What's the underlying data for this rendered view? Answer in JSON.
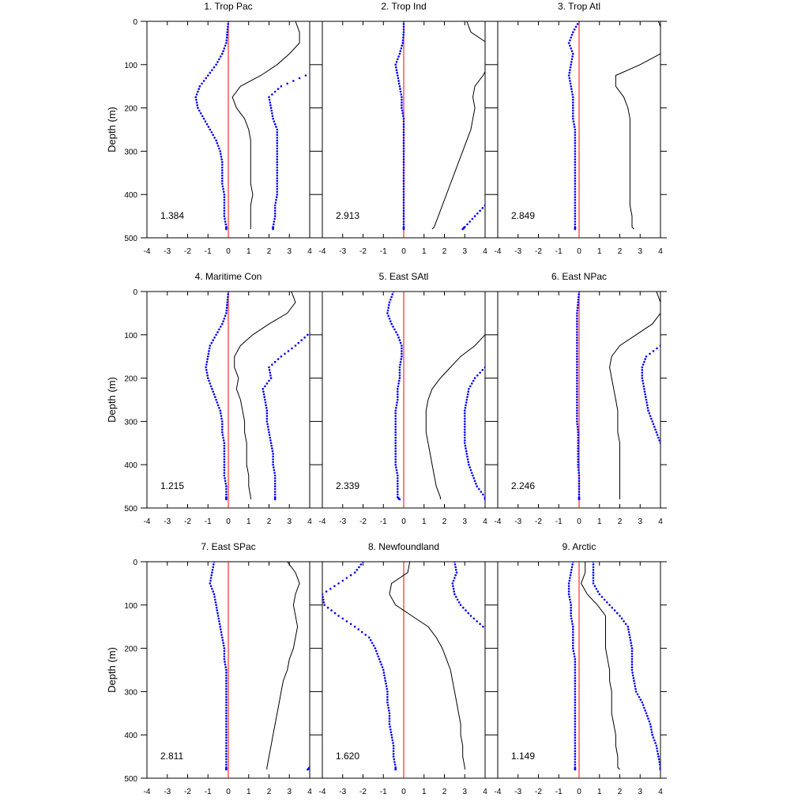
{
  "figure": {
    "ylabel": "Depth (m)",
    "series_colors": {
      "mean": "#000000",
      "band": "#0000ff",
      "zero": "#ff0000"
    }
  },
  "chart_data": [
    {
      "type": "line",
      "title": "1. Trop Pac",
      "stat": "1.384",
      "xlim": [
        -4,
        4
      ],
      "ylim": [
        0,
        500
      ],
      "xticks": [
        -4,
        -3,
        -2,
        -1,
        0,
        1,
        2,
        3,
        4
      ],
      "yticks": [
        0,
        100,
        200,
        300,
        400,
        500
      ],
      "ylabel_shown": true,
      "depth": [
        0,
        25,
        50,
        75,
        100,
        125,
        150,
        175,
        200,
        225,
        250,
        275,
        300,
        325,
        350,
        375,
        400,
        425,
        450,
        475,
        480
      ],
      "mean": [
        3.3,
        3.5,
        3.5,
        3.0,
        2.4,
        1.6,
        0.6,
        0.2,
        0.4,
        0.8,
        1.0,
        1.1,
        1.1,
        1.1,
        1.1,
        1.1,
        1.2,
        1.1,
        1.1,
        1.1,
        1.1
      ],
      "lower": [
        0.0,
        -0.05,
        -0.1,
        -0.3,
        -0.6,
        -1.0,
        -1.4,
        -1.6,
        -1.5,
        -1.2,
        -0.9,
        -0.6,
        -0.4,
        -0.3,
        -0.3,
        -0.3,
        -0.2,
        -0.2,
        -0.2,
        -0.1,
        -0.1
      ],
      "upper": [
        null,
        null,
        null,
        null,
        null,
        3.8,
        2.6,
        2.0,
        2.1,
        2.2,
        2.4,
        2.4,
        2.4,
        2.4,
        2.4,
        2.4,
        2.4,
        2.3,
        2.3,
        2.2,
        2.2
      ]
    },
    {
      "type": "line",
      "title": "2. Trop Ind",
      "stat": "2.913",
      "xlim": [
        -4,
        4
      ],
      "ylim": [
        0,
        500
      ],
      "xticks": [
        -4,
        -3,
        -2,
        -1,
        0,
        1,
        2,
        3,
        4
      ],
      "yticks": [
        0,
        100,
        200,
        300,
        400,
        500
      ],
      "ylabel_shown": false,
      "depth": [
        0,
        25,
        50,
        75,
        100,
        125,
        150,
        175,
        200,
        225,
        250,
        275,
        300,
        325,
        350,
        375,
        400,
        425,
        450,
        475,
        480
      ],
      "mean": [
        3.1,
        3.3,
        4.1,
        4.2,
        4.2,
        3.9,
        3.5,
        3.4,
        3.5,
        3.4,
        3.3,
        3.1,
        2.9,
        2.7,
        2.5,
        2.3,
        2.1,
        1.9,
        1.7,
        1.5,
        1.4
      ],
      "lower": [
        0.0,
        0.0,
        -0.05,
        -0.2,
        -0.4,
        -0.3,
        -0.2,
        -0.1,
        -0.1,
        0.0,
        0.0,
        0.0,
        0.0,
        0.0,
        0.0,
        0.0,
        0.0,
        0.0,
        0.0,
        0.0,
        0.0
      ],
      "upper": [
        null,
        null,
        null,
        null,
        null,
        null,
        null,
        null,
        null,
        null,
        null,
        null,
        null,
        null,
        null,
        null,
        null,
        4.0,
        3.5,
        3.0,
        2.9
      ]
    },
    {
      "type": "line",
      "title": "3. Trop Atl",
      "stat": "2.849",
      "xlim": [
        -4,
        4
      ],
      "ylim": [
        0,
        500
      ],
      "xticks": [
        -4,
        -3,
        -2,
        -1,
        0,
        1,
        2,
        3,
        4
      ],
      "yticks": [
        0,
        100,
        200,
        300,
        400,
        500
      ],
      "ylabel_shown": false,
      "depth": [
        0,
        25,
        50,
        75,
        100,
        125,
        150,
        175,
        200,
        225,
        250,
        275,
        300,
        325,
        350,
        375,
        400,
        425,
        450,
        475,
        480
      ],
      "mean": [
        3.9,
        4.1,
        4.2,
        4.0,
        3.0,
        1.8,
        1.8,
        2.2,
        2.4,
        2.5,
        2.5,
        2.5,
        2.5,
        2.5,
        2.5,
        2.5,
        2.5,
        2.5,
        2.6,
        2.6,
        2.7
      ],
      "lower": [
        0.0,
        -0.3,
        -0.5,
        -0.3,
        -0.4,
        -0.5,
        -0.4,
        -0.3,
        -0.3,
        -0.3,
        -0.2,
        -0.2,
        -0.2,
        -0.2,
        -0.2,
        -0.2,
        -0.2,
        -0.2,
        -0.2,
        -0.2,
        -0.2
      ],
      "upper": []
    },
    {
      "type": "line",
      "title": "4. Maritime Con",
      "stat": "1.215",
      "xlim": [
        -4,
        4
      ],
      "ylim": [
        0,
        500
      ],
      "xticks": [
        -4,
        -3,
        -2,
        -1,
        0,
        1,
        2,
        3,
        4
      ],
      "yticks": [
        0,
        100,
        200,
        300,
        400,
        500
      ],
      "ylabel_shown": false,
      "depth": [
        0,
        25,
        50,
        75,
        100,
        125,
        150,
        175,
        200,
        225,
        250,
        275,
        300,
        325,
        350,
        375,
        400,
        425,
        450,
        475,
        480
      ],
      "mean": [
        3.1,
        3.3,
        2.9,
        2.0,
        1.2,
        0.6,
        0.3,
        0.3,
        0.5,
        0.4,
        0.6,
        0.7,
        0.8,
        0.8,
        0.9,
        0.9,
        0.9,
        1.0,
        1.0,
        1.1,
        1.1
      ],
      "lower": [
        0.0,
        -0.05,
        -0.1,
        -0.3,
        -0.6,
        -0.9,
        -1.0,
        -1.1,
        -1.0,
        -0.8,
        -0.6,
        -0.4,
        -0.3,
        -0.3,
        -0.2,
        -0.2,
        -0.2,
        -0.2,
        -0.1,
        -0.1,
        -0.1
      ],
      "upper": [
        null,
        null,
        null,
        null,
        3.9,
        3.3,
        2.6,
        2.0,
        2.1,
        1.7,
        1.8,
        1.9,
        1.9,
        2.0,
        2.1,
        2.2,
        2.2,
        2.3,
        2.3,
        2.3,
        2.3
      ]
    },
    {
      "type": "line",
      "title": "5. East SAtl",
      "stat": "2.339",
      "xlim": [
        -4,
        4
      ],
      "ylim": [
        0,
        500
      ],
      "xticks": [
        -4,
        -3,
        -2,
        -1,
        0,
        1,
        2,
        3,
        4
      ],
      "yticks": [
        0,
        100,
        200,
        300,
        400,
        500
      ],
      "ylabel_shown": false,
      "depth": [
        0,
        25,
        50,
        75,
        100,
        125,
        150,
        175,
        200,
        225,
        250,
        275,
        300,
        325,
        350,
        375,
        400,
        425,
        450,
        475,
        480
      ],
      "mean": [
        null,
        null,
        null,
        null,
        4.0,
        3.5,
        2.8,
        2.3,
        1.8,
        1.4,
        1.2,
        1.1,
        1.1,
        1.1,
        1.2,
        1.3,
        1.4,
        1.5,
        1.6,
        1.8,
        1.8
      ],
      "lower": [
        -0.5,
        -0.7,
        -0.8,
        -0.6,
        -0.3,
        -0.1,
        -0.1,
        -0.2,
        -0.2,
        -0.3,
        -0.3,
        -0.4,
        -0.4,
        -0.4,
        -0.4,
        -0.4,
        -0.4,
        -0.3,
        -0.3,
        -0.3,
        -0.2
      ],
      "upper": [
        null,
        null,
        null,
        null,
        null,
        null,
        null,
        4.0,
        3.5,
        3.2,
        3.1,
        3.0,
        3.0,
        3.0,
        3.0,
        3.1,
        3.2,
        3.4,
        3.6,
        4.0,
        4.0
      ]
    },
    {
      "type": "line",
      "title": "6. East NPac",
      "stat": "2.246",
      "xlim": [
        -4,
        4
      ],
      "ylim": [
        0,
        500
      ],
      "xticks": [
        -4,
        -3,
        -2,
        -1,
        0,
        1,
        2,
        3,
        4
      ],
      "yticks": [
        0,
        100,
        200,
        300,
        400,
        500
      ],
      "ylabel_shown": false,
      "depth": [
        0,
        25,
        50,
        75,
        100,
        125,
        150,
        175,
        200,
        225,
        250,
        275,
        300,
        325,
        350,
        375,
        400,
        425,
        450,
        475,
        480
      ],
      "mean": [
        3.8,
        4.0,
        4.0,
        3.6,
        2.8,
        2.0,
        1.6,
        1.5,
        1.6,
        1.7,
        1.8,
        1.9,
        1.9,
        1.9,
        2.0,
        2.0,
        2.0,
        2.0,
        2.0,
        2.0,
        2.0
      ],
      "lower": [
        0.0,
        -0.05,
        -0.1,
        -0.1,
        -0.1,
        -0.1,
        -0.1,
        -0.1,
        -0.1,
        -0.1,
        -0.1,
        -0.1,
        -0.1,
        -0.05,
        -0.05,
        -0.05,
        -0.05,
        0.0,
        0.0,
        0.0,
        0.0
      ],
      "upper": [
        null,
        null,
        null,
        null,
        null,
        4.0,
        3.3,
        3.1,
        3.1,
        3.2,
        3.3,
        3.4,
        3.6,
        3.8,
        4.0,
        null,
        null,
        null,
        null,
        null,
        null
      ]
    },
    {
      "type": "line",
      "title": "7. East SPac",
      "stat": "2.811",
      "xlim": [
        -4,
        4
      ],
      "ylim": [
        0,
        500
      ],
      "xticks": [
        -4,
        -3,
        -2,
        -1,
        0,
        1,
        2,
        3,
        4
      ],
      "yticks": [
        0,
        100,
        200,
        300,
        400,
        500
      ],
      "ylabel_shown": false,
      "depth": [
        0,
        25,
        50,
        75,
        100,
        125,
        150,
        175,
        200,
        225,
        250,
        275,
        300,
        325,
        350,
        375,
        400,
        425,
        450,
        475,
        480
      ],
      "mean": [
        2.9,
        3.3,
        3.5,
        3.3,
        3.2,
        3.3,
        3.4,
        3.3,
        3.2,
        3.0,
        2.9,
        2.7,
        2.6,
        2.5,
        2.4,
        2.3,
        2.2,
        2.1,
        2.0,
        1.9,
        1.9
      ],
      "lower": [
        -0.7,
        -0.8,
        -0.9,
        -0.7,
        -0.6,
        -0.5,
        -0.4,
        -0.3,
        -0.2,
        -0.2,
        -0.1,
        -0.1,
        -0.1,
        -0.1,
        -0.1,
        -0.1,
        -0.1,
        -0.1,
        -0.1,
        -0.1,
        -0.1
      ],
      "upper": [
        null,
        null,
        null,
        null,
        null,
        null,
        null,
        null,
        null,
        null,
        null,
        null,
        null,
        null,
        null,
        null,
        null,
        null,
        null,
        4.0,
        3.9
      ]
    },
    {
      "type": "line",
      "title": "8. Newfoundland",
      "stat": "1.620",
      "xlim": [
        -4,
        4
      ],
      "ylim": [
        0,
        500
      ],
      "xticks": [
        -4,
        -3,
        -2,
        -1,
        0,
        1,
        2,
        3,
        4
      ],
      "yticks": [
        0,
        100,
        200,
        300,
        400,
        500
      ],
      "ylabel_shown": false,
      "depth": [
        0,
        25,
        50,
        75,
        100,
        125,
        150,
        175,
        200,
        225,
        250,
        275,
        300,
        325,
        350,
        375,
        400,
        425,
        450,
        475,
        480
      ],
      "mean": [
        0.3,
        0.2,
        -0.6,
        -0.7,
        -0.4,
        0.4,
        1.2,
        1.6,
        1.9,
        2.1,
        2.3,
        2.4,
        2.5,
        2.6,
        2.7,
        2.8,
        2.8,
        2.9,
        2.9,
        3.0,
        3.0
      ],
      "lower": [
        -2.0,
        -2.4,
        -3.2,
        -4.0,
        -3.9,
        -3.2,
        -2.4,
        -1.7,
        -1.4,
        -1.2,
        -1.0,
        -0.9,
        -0.8,
        -0.8,
        -0.7,
        -0.7,
        -0.6,
        -0.5,
        -0.5,
        -0.4,
        -0.4
      ],
      "upper": [
        2.5,
        2.6,
        2.4,
        2.5,
        2.8,
        3.3,
        3.9,
        null,
        null,
        null,
        null,
        null,
        null,
        null,
        null,
        null,
        null,
        null,
        null,
        null,
        null
      ]
    },
    {
      "type": "line",
      "title": "9. Arctic",
      "stat": "1.149",
      "xlim": [
        -4,
        4
      ],
      "ylim": [
        0,
        500
      ],
      "xticks": [
        -4,
        -3,
        -2,
        -1,
        0,
        1,
        2,
        3,
        4
      ],
      "yticks": [
        0,
        100,
        200,
        300,
        400,
        500
      ],
      "ylabel_shown": false,
      "depth": [
        0,
        25,
        50,
        75,
        100,
        125,
        150,
        175,
        200,
        225,
        250,
        275,
        300,
        325,
        350,
        375,
        400,
        425,
        450,
        475,
        480
      ],
      "mean": [
        0.3,
        0.3,
        0.1,
        0.4,
        0.9,
        1.3,
        1.3,
        1.3,
        1.3,
        1.4,
        1.5,
        1.5,
        1.6,
        1.6,
        1.6,
        1.7,
        1.8,
        1.8,
        1.9,
        1.9,
        2.0
      ],
      "lower": [
        -0.3,
        -0.4,
        -0.5,
        -0.5,
        -0.4,
        -0.4,
        -0.3,
        -0.3,
        -0.3,
        -0.2,
        -0.2,
        -0.2,
        -0.2,
        -0.2,
        -0.2,
        -0.2,
        -0.2,
        -0.2,
        -0.2,
        -0.2,
        -0.2
      ],
      "upper": [
        0.7,
        0.7,
        0.7,
        1.0,
        1.5,
        2.0,
        2.4,
        2.5,
        2.6,
        2.6,
        2.6,
        2.7,
        2.8,
        3.1,
        3.3,
        3.5,
        3.6,
        3.8,
        3.9,
        4.0,
        4.0
      ]
    }
  ]
}
